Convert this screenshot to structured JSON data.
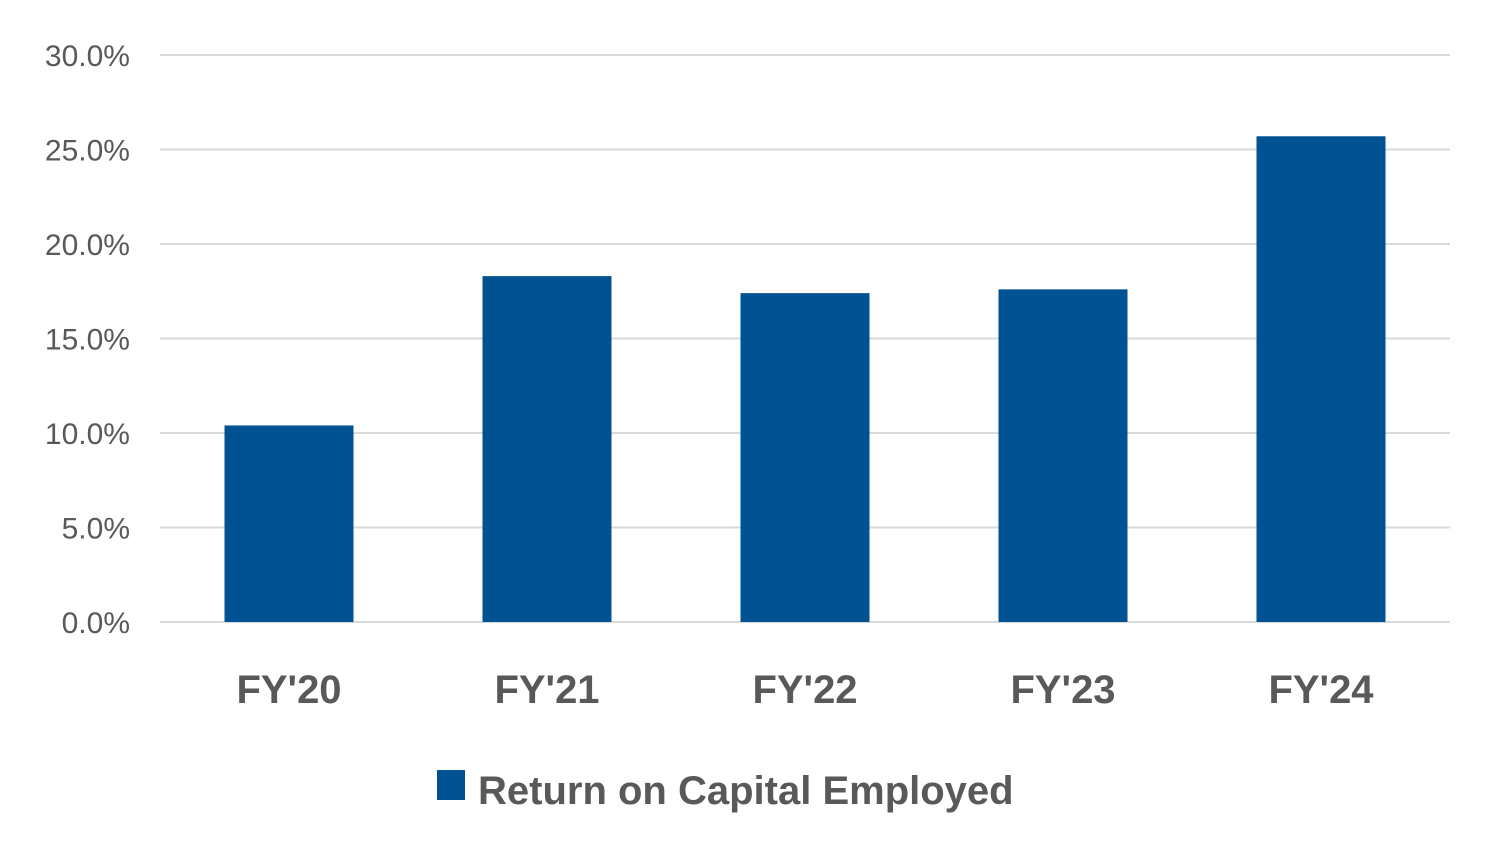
{
  "chart_data": {
    "type": "bar",
    "title": "",
    "xlabel": "",
    "ylabel": "",
    "categories": [
      "FY'20",
      "FY'21",
      "FY'22",
      "FY'23",
      "FY'24"
    ],
    "series": [
      {
        "name": "Return on Capital Employed",
        "color": "#005293",
        "values": [
          10.4,
          18.3,
          17.4,
          17.6,
          25.7
        ]
      }
    ],
    "ylim": [
      0,
      30
    ],
    "y_ticks": [
      0,
      5,
      10,
      15,
      20,
      25,
      30
    ],
    "y_tick_labels": [
      "0.0%",
      "5.0%",
      "10.0%",
      "15.0%",
      "20.0%",
      "25.0%",
      "30.0%"
    ],
    "grid": true,
    "legend": "bottom-center"
  }
}
